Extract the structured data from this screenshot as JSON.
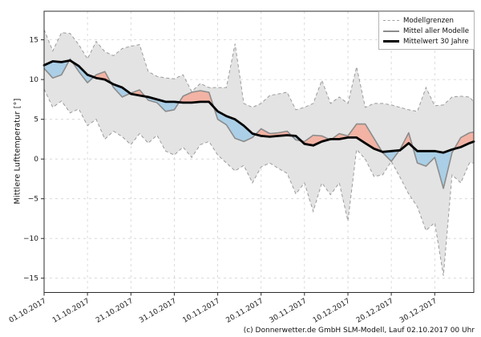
{
  "caption": {
    "text": "(c) Donnerwetter.de GmbH SLM-Modell, Lauf 02.10.2017 00 Uhr"
  },
  "axes": {
    "ylabel": "Mittlere Lufttemperatur [°]",
    "ytick_values": [
      15,
      10,
      5,
      0,
      -5,
      -10,
      -15
    ],
    "ytick_labels": [
      "15",
      "10",
      "5",
      "0",
      "−5",
      "−10",
      "−15"
    ],
    "xtick_days": [
      0,
      10,
      20,
      30,
      40,
      50,
      60,
      70,
      80,
      90
    ],
    "xtick_labels": [
      "01.10.2017",
      "11.10.2017",
      "21.10.2017",
      "31.10.2017",
      "10.11.2017",
      "20.11.2017",
      "30.11.2017",
      "10.12.2017",
      "20.12.2017",
      "30.12.2017"
    ]
  },
  "legend": {
    "items": [
      {
        "label": "Modellgrenzen",
        "style": "dashed-gray"
      },
      {
        "label": "Mittel aller Modelle",
        "style": "solid-gray"
      },
      {
        "label": "Mittelwert 30 Jahre",
        "style": "thick-black"
      }
    ]
  },
  "colors": {
    "band": "#e3e3e3",
    "bound_line": "#9b9b9b",
    "model_mean_line": "#8c8c8c",
    "mean30_line": "#000000",
    "fill_above": "#f2b3a4",
    "fill_below": "#abcfe6",
    "grid": "#d2d2d2",
    "spine": "#2b2b2b"
  },
  "chart_data": {
    "type": "line",
    "title": "",
    "xlabel": "",
    "ylabel": "Mittlere Lufttemperatur [°]",
    "x_unit": "days since 01.10.2017",
    "xlim_days": [
      0,
      99
    ],
    "ylim": [
      -16.8,
      18.6
    ],
    "grid": true,
    "legend_position": "upper right",
    "x_days": [
      0,
      2,
      4,
      6,
      8,
      10,
      12,
      14,
      16,
      18,
      20,
      22,
      24,
      26,
      28,
      30,
      32,
      34,
      36,
      38,
      40,
      42,
      44,
      46,
      48,
      50,
      52,
      54,
      56,
      58,
      60,
      62,
      64,
      66,
      68,
      70,
      72,
      74,
      76,
      78,
      80,
      82,
      84,
      86,
      88,
      90,
      92,
      94,
      96,
      98,
      99
    ],
    "series": [
      {
        "key": "upper",
        "name": "Modellgrenzen (obere Grenze)",
        "style": "dashed",
        "values": [
          16.3,
          13.6,
          15.9,
          15.8,
          14.4,
          12.6,
          14.8,
          13.5,
          13.0,
          13.9,
          14.2,
          14.4,
          11.0,
          10.4,
          10.2,
          10.1,
          10.6,
          8.5,
          9.5,
          9.0,
          9.0,
          9.0,
          14.5,
          7.0,
          6.5,
          7.0,
          8.0,
          8.2,
          8.4,
          6.2,
          6.5,
          7.0,
          9.9,
          7.0,
          7.8,
          7.0,
          11.6,
          6.5,
          7.0,
          7.0,
          6.8,
          6.5,
          6.2,
          6.0,
          9.0,
          6.7,
          6.8,
          7.8,
          7.9,
          7.8,
          7.2
        ]
      },
      {
        "key": "lower",
        "name": "Modellgrenzen (untere Grenze)",
        "style": "dashed",
        "values": [
          8.8,
          6.5,
          7.3,
          5.8,
          6.3,
          4.2,
          5.0,
          2.5,
          3.5,
          2.8,
          1.8,
          3.2,
          2.0,
          3.0,
          1.0,
          0.5,
          1.5,
          0.2,
          1.8,
          2.2,
          0.5,
          -0.5,
          -1.5,
          -0.8,
          -3.0,
          -1.0,
          -0.5,
          -1.2,
          -1.8,
          -4.4,
          -3.0,
          -6.6,
          -3.0,
          -4.5,
          -3.0,
          -7.8,
          1.2,
          0.0,
          -2.2,
          -2.0,
          -0.3,
          -2.3,
          -4.4,
          -6.0,
          -9.0,
          -8.0,
          -14.7,
          -2.0,
          -3.0,
          -0.5,
          -0.5
        ]
      },
      {
        "key": "model_mean",
        "name": "Mittel aller Modelle",
        "style": "solid-gray",
        "values": [
          11.4,
          10.2,
          10.6,
          12.6,
          11.0,
          9.6,
          10.6,
          11.0,
          9.0,
          7.8,
          8.3,
          8.7,
          7.4,
          7.1,
          6.0,
          6.2,
          7.9,
          8.4,
          8.6,
          8.4,
          5.0,
          4.3,
          2.6,
          2.2,
          2.7,
          3.8,
          3.2,
          3.3,
          3.5,
          2.4,
          2.2,
          3.0,
          2.9,
          2.4,
          3.2,
          2.9,
          4.4,
          4.4,
          2.6,
          0.8,
          -0.3,
          1.2,
          3.3,
          -0.5,
          -0.9,
          0.2,
          -3.7,
          0.8,
          2.7,
          3.3,
          3.4
        ]
      },
      {
        "key": "mean30",
        "name": "Mittelwert 30 Jahre",
        "style": "thick-black",
        "values": [
          11.8,
          12.3,
          12.2,
          12.4,
          11.7,
          10.6,
          10.2,
          10.0,
          9.4,
          9.0,
          8.2,
          8.0,
          7.8,
          7.5,
          7.2,
          7.2,
          7.1,
          7.1,
          7.2,
          7.2,
          6.0,
          5.4,
          5.0,
          4.2,
          3.2,
          2.9,
          2.8,
          2.9,
          3.0,
          2.9,
          1.9,
          1.7,
          2.2,
          2.5,
          2.5,
          2.7,
          2.7,
          2.0,
          1.3,
          0.9,
          1.0,
          1.1,
          2.0,
          1.0,
          1.0,
          1.0,
          0.8,
          1.2,
          1.5,
          2.0,
          2.2
        ]
      }
    ],
    "fills": [
      {
        "kind": "band",
        "between": [
          "upper",
          "lower"
        ],
        "color": "#e3e3e3"
      },
      {
        "kind": "difference",
        "between": [
          "model_mean",
          "mean30"
        ],
        "above_color": "#f2b3a4",
        "below_color": "#abcfe6"
      }
    ]
  }
}
